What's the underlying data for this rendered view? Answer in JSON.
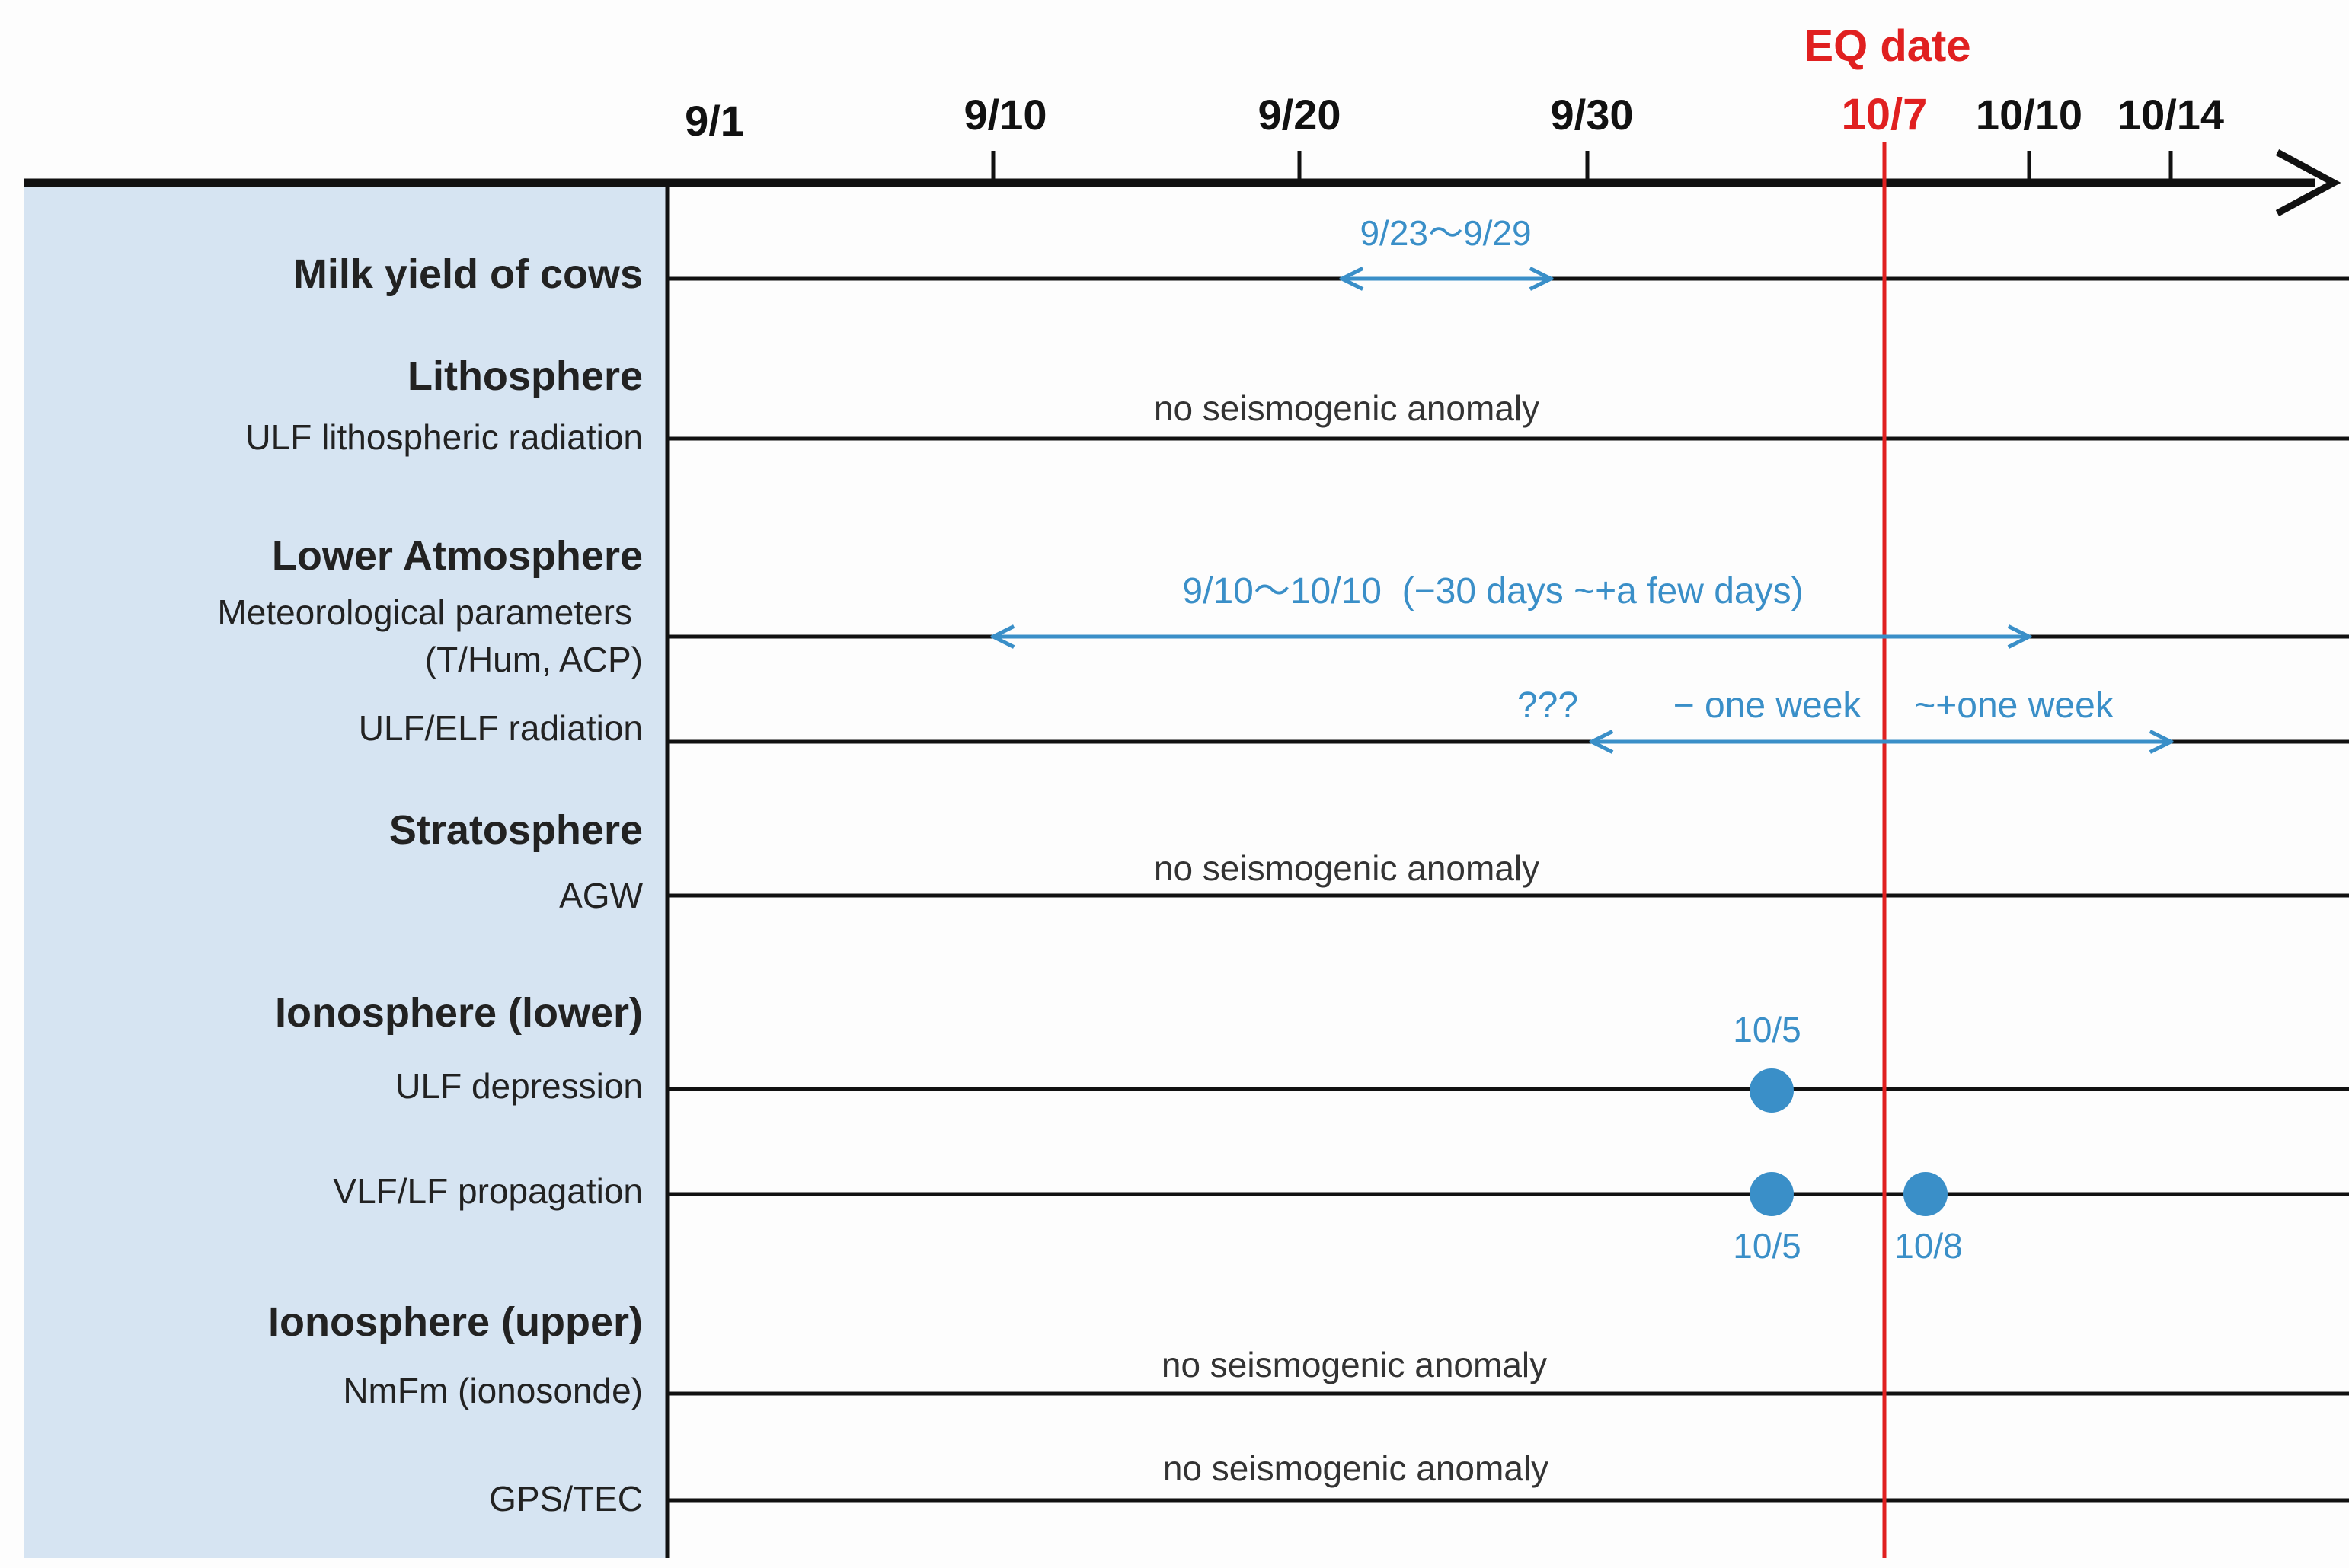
{
  "colors": {
    "axis": "#111111",
    "eq": "#e02020",
    "accent": "#3a8fc8",
    "panel": "#d6e4f2",
    "label": "#222222",
    "note": "#333333"
  },
  "axis": {
    "ticks": [
      "9/1",
      "9/10",
      "9/20",
      "9/30",
      "10/7",
      "10/10",
      "10/14"
    ],
    "eq_label": "EQ date",
    "eq_tick": "10/7"
  },
  "rows": [
    {
      "heading": "Milk yield of cows"
    },
    {
      "heading": "Lithosphere",
      "sub": "ULF lithospheric radiation"
    },
    {
      "heading": "Lower Atmosphere",
      "sub": "Meteorological parameters",
      "sub2": "(T/Hum, ACP)"
    },
    {
      "sub": "ULF/ELF radiation"
    },
    {
      "heading": "Stratosphere",
      "sub": "AGW"
    },
    {
      "heading": "Ionosphere (lower)",
      "sub": "ULF depression"
    },
    {
      "sub": "VLF/LF propagation"
    },
    {
      "heading": "Ionosphere (upper)",
      "sub": "NmFm (ionosonde)"
    },
    {
      "sub": "GPS/TEC"
    }
  ],
  "annotations": {
    "milk_range": "9/23～9/29",
    "lower_atm_range": "9/10～10/10  (−30 days ~+a few days)",
    "ulf_elf_unknown": "???",
    "ulf_elf_before": "− one week",
    "ulf_elf_after": "~+one week",
    "no_anomaly": "no seismogenic anomaly",
    "ulf_dep_point": "10/5",
    "vlf_point_a": "10/5",
    "vlf_point_b": "10/8"
  }
}
